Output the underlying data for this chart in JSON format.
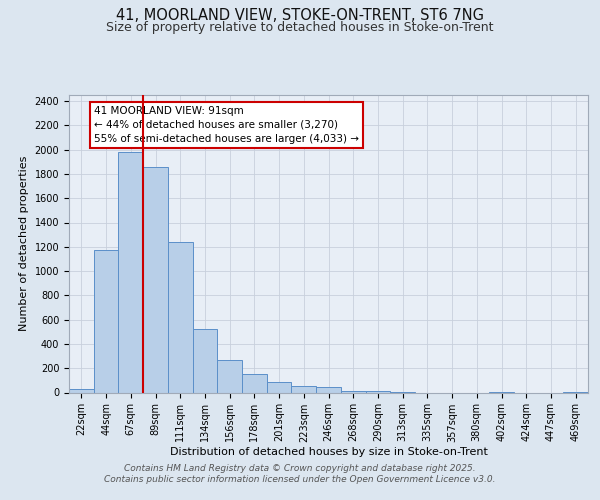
{
  "title_line1": "41, MOORLAND VIEW, STOKE-ON-TRENT, ST6 7NG",
  "title_line2": "Size of property relative to detached houses in Stoke-on-Trent",
  "xlabel": "Distribution of detached houses by size in Stoke-on-Trent",
  "ylabel": "Number of detached properties",
  "categories": [
    "22sqm",
    "44sqm",
    "67sqm",
    "89sqm",
    "111sqm",
    "134sqm",
    "156sqm",
    "178sqm",
    "201sqm",
    "223sqm",
    "246sqm",
    "268sqm",
    "290sqm",
    "313sqm",
    "335sqm",
    "357sqm",
    "380sqm",
    "402sqm",
    "424sqm",
    "447sqm",
    "469sqm"
  ],
  "values": [
    25,
    1170,
    1980,
    1855,
    1240,
    520,
    270,
    155,
    90,
    55,
    45,
    10,
    10,
    5,
    0,
    0,
    0,
    5,
    0,
    0,
    5
  ],
  "bar_color": "#b8cfe8",
  "bar_edge_color": "#5b8fc9",
  "bar_width": 1.0,
  "red_line_x": 2.5,
  "annotation_text": "41 MOORLAND VIEW: 91sqm\n← 44% of detached houses are smaller (3,270)\n55% of semi-detached houses are larger (4,033) →",
  "annotation_box_color": "#ffffff",
  "annotation_box_edge_color": "#cc0000",
  "ylim": [
    0,
    2450
  ],
  "yticks": [
    0,
    200,
    400,
    600,
    800,
    1000,
    1200,
    1400,
    1600,
    1800,
    2000,
    2200,
    2400
  ],
  "grid_color": "#c8d0dc",
  "background_color": "#dce6f0",
  "plot_bg_color": "#e8eef6",
  "footer_line1": "Contains HM Land Registry data © Crown copyright and database right 2025.",
  "footer_line2": "Contains public sector information licensed under the Open Government Licence v3.0.",
  "title_fontsize": 10.5,
  "subtitle_fontsize": 9,
  "axis_label_fontsize": 8,
  "tick_fontsize": 7,
  "annotation_fontsize": 7.5,
  "footer_fontsize": 6.5
}
